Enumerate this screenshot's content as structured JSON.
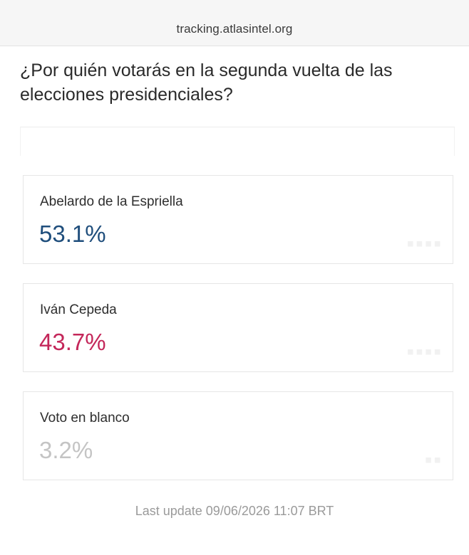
{
  "browser": {
    "url": "tracking.atlasintel.org"
  },
  "poll": {
    "question": "¿Por quién votarás en la segunda vuelta de las elecciones presidenciales?",
    "results": [
      {
        "name": "Abelardo de la Espriella",
        "percent": "53.1%",
        "color": "#1f4e7c"
      },
      {
        "name": "Iván Cepeda",
        "percent": "43.7%",
        "color": "#c4275a"
      },
      {
        "name": "Voto en blanco",
        "percent": "3.2%",
        "color": "#c4c4c4"
      }
    ],
    "last_update": "Last update 09/06/2026 11:07 BRT"
  }
}
